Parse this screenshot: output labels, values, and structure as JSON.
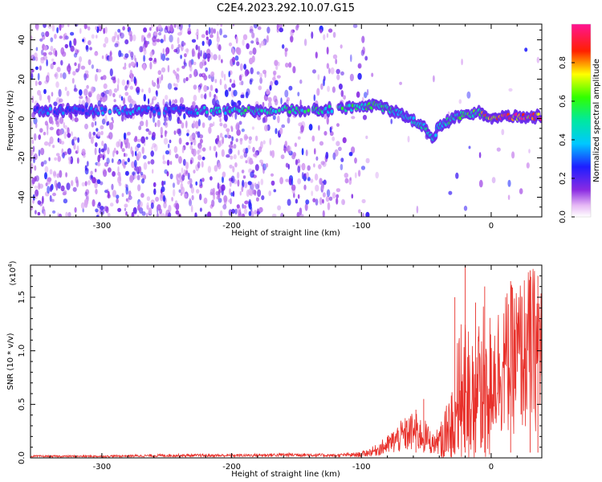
{
  "figure": {
    "title": "C2E4.2023.292.10.07.G15"
  },
  "chart_data": [
    {
      "type": "heatmap",
      "title": "C2E4.2023.292.10.07.G15",
      "xlabel": "Height of straight line (km)",
      "ylabel": "Frequency (Hz)",
      "xlim": [
        -355,
        39
      ],
      "ylim": [
        -50,
        48
      ],
      "x_ticks": [
        -300,
        -200,
        -100,
        0
      ],
      "x_tick_labels": [
        "-300",
        "-200",
        "-100",
        "0"
      ],
      "y_ticks": [
        -40,
        -20,
        0,
        20,
        40
      ],
      "y_tick_labels": [
        "-40",
        "-20",
        "0",
        "20",
        "40"
      ],
      "colorbar": {
        "label": "Normalized spectral amplitude",
        "range": [
          0,
          1
        ],
        "ticks": [
          0.0,
          0.2,
          0.4,
          0.6,
          0.8
        ],
        "tick_labels": [
          "0.0",
          "0.2",
          "0.4",
          "0.6",
          "0.8"
        ],
        "colormap": "rainbow (white→purple→blue→cyan→green→yellow→red→pink)"
      },
      "ridge": {
        "x": [
          -340,
          -320,
          -300,
          -280,
          -260,
          -240,
          -220,
          -200,
          -180,
          -160,
          -140,
          -120,
          -100,
          -90,
          -80,
          -70,
          -60,
          -50,
          -45,
          -40,
          -30,
          -20,
          -10,
          0,
          10,
          20,
          30,
          39
        ],
        "freq": [
          4,
          4,
          4,
          4,
          4,
          4,
          4,
          4,
          4,
          5,
          4,
          5,
          6,
          7,
          5,
          2,
          -1,
          -5,
          -10,
          -4,
          0,
          2,
          3,
          1,
          1,
          1,
          1,
          1
        ],
        "amplitude": [
          0.35,
          0.3,
          0.35,
          0.4,
          0.35,
          0.3,
          0.45,
          0.5,
          0.55,
          0.55,
          0.55,
          0.55,
          0.55,
          0.6,
          0.55,
          0.5,
          0.5,
          0.5,
          0.45,
          0.5,
          0.55,
          0.6,
          0.65,
          0.9,
          0.95,
          0.95,
          0.95,
          0.95
        ]
      }
    },
    {
      "type": "line",
      "xlabel": "Height of straight line (km)",
      "ylabel": "SNR (10 * v/v)",
      "y_multiplier_label": "(x10",
      "y_multiplier_exp": "4",
      "y_multiplier_close": ")",
      "xlim": [
        -355,
        39
      ],
      "ylim": [
        0,
        1.8
      ],
      "x_ticks": [
        -300,
        -200,
        -100,
        0
      ],
      "x_tick_labels": [
        "-300",
        "-200",
        "-100",
        "0"
      ],
      "y_ticks": [
        0.0,
        0.5,
        1.0,
        1.5
      ],
      "y_tick_labels": [
        "0.0",
        "0.5",
        "1.0",
        "1.5"
      ],
      "series": [
        {
          "color": "#e8302a",
          "envelope_x": [
            -355,
            -300,
            -250,
            -200,
            -150,
            -120,
            -100,
            -90,
            -80,
            -70,
            -60,
            -50,
            -45,
            -40,
            -35,
            -30,
            -25,
            -20,
            -15,
            -10,
            -5,
            0,
            10,
            20,
            30,
            39
          ],
          "envelope_y": [
            0.02,
            0.02,
            0.03,
            0.03,
            0.04,
            0.03,
            0.05,
            0.1,
            0.18,
            0.3,
            0.38,
            0.3,
            0.2,
            0.25,
            0.4,
            0.75,
            1.0,
            1.25,
            0.95,
            1.15,
            1.25,
            1.2,
            1.35,
            1.45,
            1.55,
            1.6
          ],
          "spikes_x": [
            -58,
            -52,
            -28,
            -20,
            -12,
            -5,
            15,
            30,
            36
          ],
          "spikes_y": [
            0.45,
            0.55,
            1.5,
            1.82,
            1.45,
            1.6,
            1.65,
            1.75,
            1.7
          ]
        }
      ]
    }
  ]
}
